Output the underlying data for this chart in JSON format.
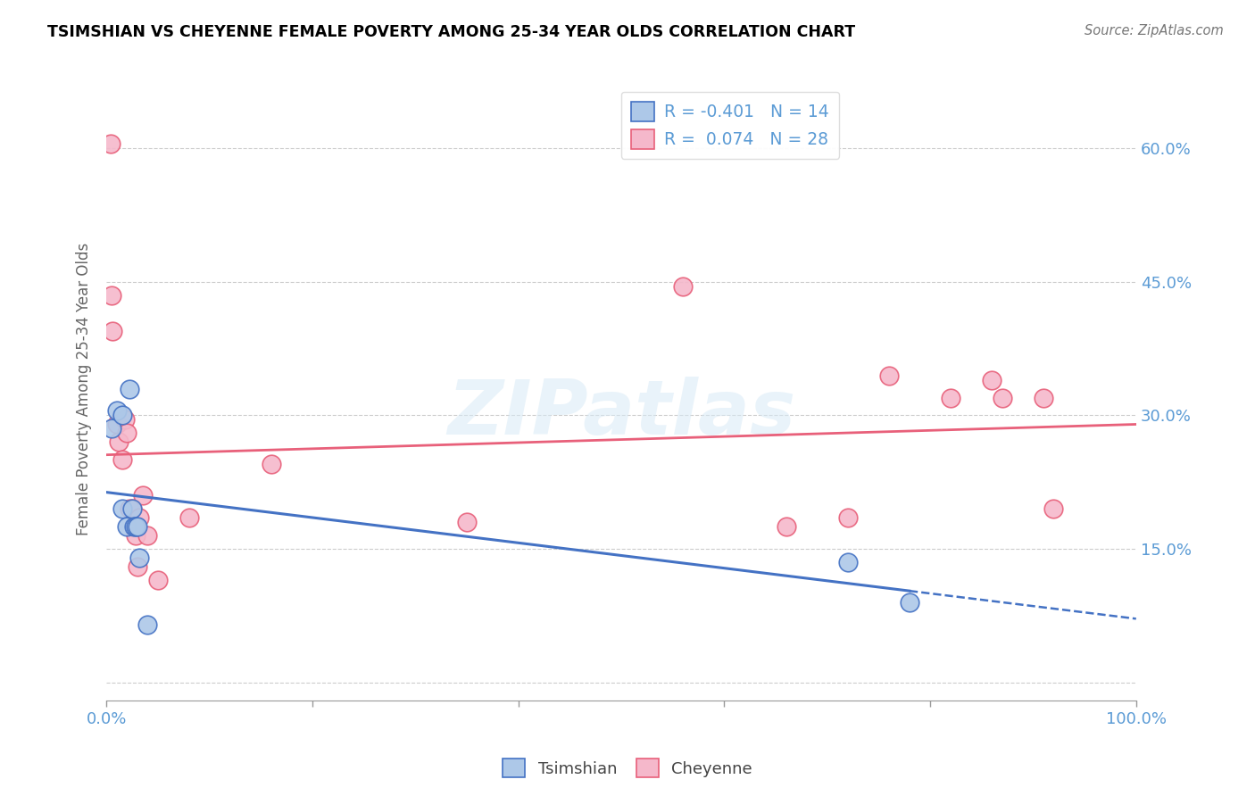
{
  "title": "TSIMSHIAN VS CHEYENNE FEMALE POVERTY AMONG 25-34 YEAR OLDS CORRELATION CHART",
  "source": "Source: ZipAtlas.com",
  "ylabel": "Female Poverty Among 25-34 Year Olds",
  "xlim": [
    0,
    1.0
  ],
  "ylim": [
    -0.02,
    0.68
  ],
  "tsimshian_color": "#adc8e8",
  "cheyenne_color": "#f5b8cb",
  "tsimshian_line_color": "#4472c4",
  "cheyenne_line_color": "#e8607a",
  "tsimshian_x": [
    0.005,
    0.01,
    0.015,
    0.015,
    0.02,
    0.022,
    0.025,
    0.027,
    0.028,
    0.03,
    0.032,
    0.04,
    0.72,
    0.78
  ],
  "tsimshian_y": [
    0.285,
    0.305,
    0.3,
    0.195,
    0.175,
    0.33,
    0.195,
    0.175,
    0.175,
    0.175,
    0.14,
    0.065,
    0.135,
    0.09
  ],
  "cheyenne_x": [
    0.004,
    0.005,
    0.006,
    0.01,
    0.012,
    0.015,
    0.018,
    0.02,
    0.022,
    0.025,
    0.028,
    0.03,
    0.032,
    0.035,
    0.04,
    0.05,
    0.08,
    0.16,
    0.35,
    0.56,
    0.66,
    0.72,
    0.76,
    0.82,
    0.86,
    0.87,
    0.91,
    0.92
  ],
  "cheyenne_y": [
    0.605,
    0.435,
    0.395,
    0.29,
    0.27,
    0.25,
    0.295,
    0.28,
    0.195,
    0.195,
    0.165,
    0.13,
    0.185,
    0.21,
    0.165,
    0.115,
    0.185,
    0.245,
    0.18,
    0.445,
    0.175,
    0.185,
    0.345,
    0.32,
    0.34,
    0.32,
    0.32,
    0.195
  ],
  "watermark": "ZIPatlas",
  "legend_label1": "R = -0.401   N = 14",
  "legend_label2": "R =  0.074   N = 28",
  "bottom_legend1": "Tsimshian",
  "bottom_legend2": "Cheyenne",
  "ytick_vals": [
    0.0,
    0.15,
    0.3,
    0.45,
    0.6
  ],
  "ytick_right_labels": [
    "",
    "15.0%",
    "30.0%",
    "45.0%",
    "60.0%"
  ],
  "xtick_vals": [
    0.0,
    0.2,
    0.4,
    0.6,
    0.8,
    1.0
  ],
  "xtick_labels": [
    "0.0%",
    "",
    "",
    "",
    "",
    "100.0%"
  ],
  "tick_color": "#5b9bd5",
  "grid_color": "#cccccc",
  "axis_color": "#999999"
}
